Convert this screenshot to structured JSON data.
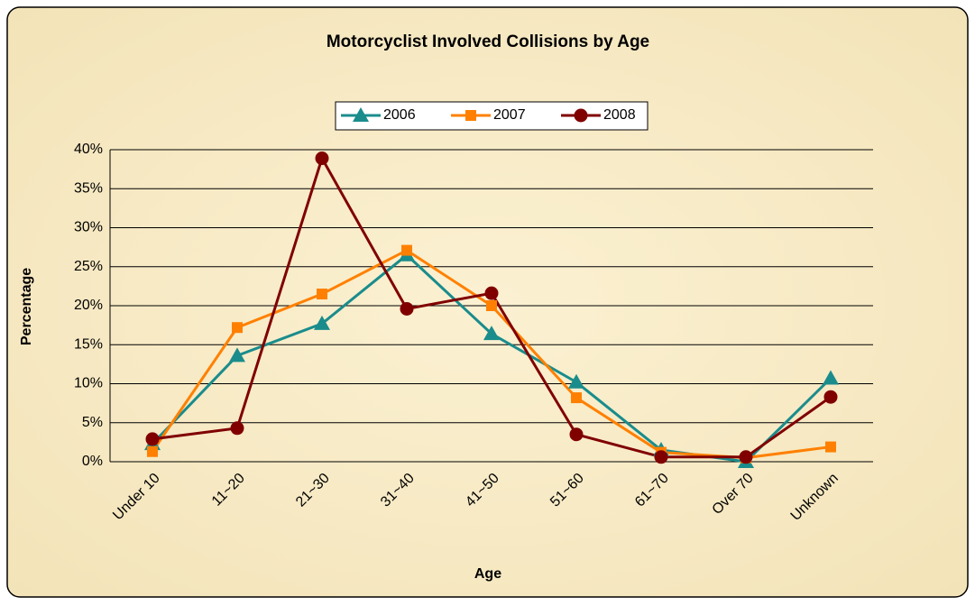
{
  "chart_data": {
    "type": "line",
    "title": "Motorcyclist Involved Collisions by Age",
    "x_label": "Age",
    "y_label": "Percentage",
    "categories": [
      "Under 10",
      "11~20",
      "21~30",
      "31~40",
      "41~50",
      "51~60",
      "61~70",
      "Over 70",
      "Unknown"
    ],
    "series": [
      {
        "name": "2006",
        "color": "#1a8c8c",
        "marker": "triangle",
        "values": [
          2.3,
          13.6,
          17.7,
          26.5,
          16.4,
          10.2,
          1.5,
          0,
          10.7
        ]
      },
      {
        "name": "2007",
        "color": "#ff8000",
        "marker": "square",
        "values": [
          1.3,
          17.2,
          21.5,
          27.1,
          20.0,
          8.2,
          1.2,
          0.5,
          1.9
        ]
      },
      {
        "name": "2008",
        "color": "#800000",
        "marker": "circle",
        "values": [
          2.9,
          4.3,
          38.9,
          19.6,
          21.6,
          3.5,
          0.6,
          0.6,
          8.3
        ]
      }
    ],
    "ylim": [
      0,
      40
    ],
    "yticks": [
      {
        "value": 0,
        "label": "0%"
      },
      {
        "value": 5,
        "label": "5%"
      },
      {
        "value": 10,
        "label": "10%"
      },
      {
        "value": 15,
        "label": "15%"
      },
      {
        "value": 20,
        "label": "20%"
      },
      {
        "value": 25,
        "label": "25%"
      },
      {
        "value": 30,
        "label": "30%"
      },
      {
        "value": 35,
        "label": "35%"
      },
      {
        "value": 40,
        "label": "40%"
      }
    ],
    "grid": true,
    "legend": "top"
  }
}
